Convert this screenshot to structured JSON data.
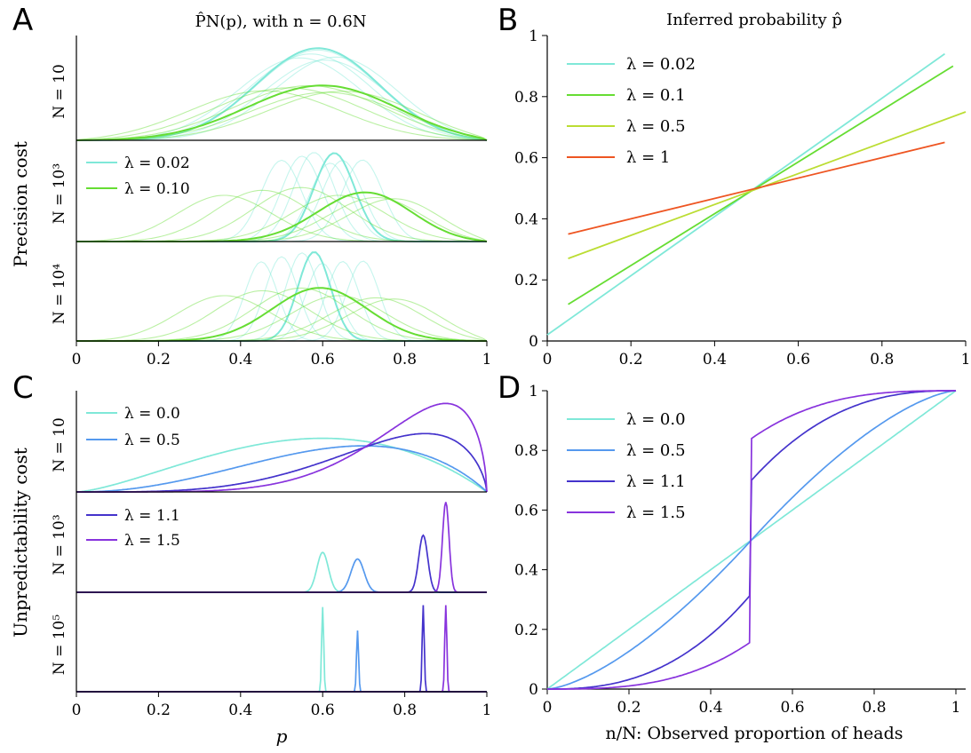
{
  "panel_letters": [
    "A",
    "B",
    "C",
    "D"
  ],
  "shared_x_ticks": [
    "0",
    "0.2",
    "0.4",
    "0.6",
    "0.8",
    "1"
  ],
  "colors": {
    "cyan": "#7fe8d8",
    "green": "#66dd33",
    "yellowgreen": "#bbdd33",
    "orange": "#ee5522",
    "blue": "#5599ee",
    "indigo": "#4433cc",
    "violet": "#8833dd"
  },
  "panel_a": {
    "title": "P̂N(p), with n = 0.6N",
    "row_group_label": "Precision cost",
    "row_labels": [
      "N = 10",
      "N = 10³",
      "N = 10⁴"
    ],
    "legend": [
      "λ = 0.02",
      "λ = 0.10"
    ]
  },
  "panel_b": {
    "title": "Inferred probability p̂",
    "y_ticks": [
      "0",
      "0.2",
      "0.4",
      "0.6",
      "0.8",
      "1"
    ],
    "legend": [
      "λ = 0.02",
      "λ = 0.1",
      "λ = 0.5",
      "λ = 1"
    ]
  },
  "panel_c": {
    "row_group_label": "Unpredictability cost",
    "row_labels": [
      "N = 10",
      "N = 10³",
      "N = 10⁵"
    ],
    "legend_top": [
      "λ = 0.0",
      "λ = 0.5"
    ],
    "legend_mid": [
      "λ = 1.1",
      "λ = 1.5"
    ],
    "x_label": "p"
  },
  "panel_d": {
    "y_ticks": [
      "0",
      "0.2",
      "0.4",
      "0.6",
      "0.8",
      "1"
    ],
    "legend": [
      "λ = 0.0",
      "λ = 0.5",
      "λ = 1.1",
      "λ = 1.5"
    ],
    "x_label": "n/N: Observed proportion of heads"
  },
  "chart_data": [
    {
      "panel": "A",
      "type": "line",
      "title": "P̂N(p), with n = 0.6N",
      "xlabel": "",
      "ylabel": "Precision cost",
      "xlim": [
        0,
        1
      ],
      "rows": [
        {
          "label": "N = 10",
          "series": [
            {
              "name": "λ = 0.02",
              "peaks": [
                0.55,
                0.58,
                0.6,
                0.62,
                0.65
              ],
              "width": 0.16,
              "main_peak": 0.6
            },
            {
              "name": "λ = 0.10",
              "peaks": [
                0.45,
                0.52,
                0.58,
                0.63,
                0.68
              ],
              "width": 0.2,
              "main_peak": 0.62
            }
          ]
        },
        {
          "label": "N = 10³",
          "series": [
            {
              "name": "λ = 0.02",
              "peaks": [
                0.5,
                0.55,
                0.58,
                0.62,
                0.65,
                0.7
              ],
              "width": 0.05,
              "main_peak": 0.63
            },
            {
              "name": "λ = 0.10",
              "peaks": [
                0.35,
                0.45,
                0.55,
                0.65,
                0.75,
                0.8
              ],
              "width": 0.12,
              "main_peak": 0.72
            }
          ]
        },
        {
          "label": "N = 10⁴",
          "series": [
            {
              "name": "λ = 0.02",
              "peaks": [
                0.45,
                0.5,
                0.55,
                0.6,
                0.65,
                0.7
              ],
              "width": 0.04,
              "main_peak": 0.58
            },
            {
              "name": "λ = 0.10",
              "peaks": [
                0.35,
                0.45,
                0.55,
                0.65,
                0.75,
                0.8
              ],
              "width": 0.12,
              "main_peak": 0.6
            }
          ]
        }
      ]
    },
    {
      "panel": "B",
      "type": "line",
      "title": "Inferred probability p̂",
      "xlim": [
        0,
        1
      ],
      "ylim": [
        0,
        1
      ],
      "series": [
        {
          "name": "λ = 0.02",
          "x": [
            0.0,
            0.95
          ],
          "y": [
            0.02,
            0.94
          ]
        },
        {
          "name": "λ = 0.1",
          "x": [
            0.05,
            0.97
          ],
          "y": [
            0.12,
            0.9
          ]
        },
        {
          "name": "λ = 0.5",
          "x": [
            0.05,
            1.0
          ],
          "y": [
            0.27,
            0.75
          ]
        },
        {
          "name": "λ = 1",
          "x": [
            0.05,
            0.95
          ],
          "y": [
            0.35,
            0.65
          ]
        }
      ]
    },
    {
      "panel": "C",
      "type": "line",
      "ylabel": "Unpredictability cost",
      "xlabel": "p",
      "xlim": [
        0,
        1
      ],
      "rows": [
        {
          "label": "N = 10",
          "series": [
            {
              "name": "λ = 0.0",
              "mode": 0.6,
              "height": 0.57
            },
            {
              "name": "λ = 0.5",
              "mode": 0.7,
              "height": 0.49
            },
            {
              "name": "λ = 1.1",
              "mode": 0.85,
              "height": 0.62
            },
            {
              "name": "λ = 1.5",
              "mode": 0.9,
              "height": 0.94
            }
          ]
        },
        {
          "label": "N = 10³",
          "series": [
            {
              "name": "λ = 0.0",
              "mode": 0.6,
              "height": 0.42
            },
            {
              "name": "λ = 0.5",
              "mode": 0.685,
              "height": 0.35
            },
            {
              "name": "λ = 1.1",
              "mode": 0.845,
              "height": 0.6
            },
            {
              "name": "λ = 1.5",
              "mode": 0.9,
              "height": 0.95
            }
          ]
        },
        {
          "label": "N = 10⁵",
          "series": [
            {
              "name": "λ = 0.0",
              "mode": 0.6,
              "height": 0.9
            },
            {
              "name": "λ = 0.5",
              "mode": 0.685,
              "height": 0.65
            },
            {
              "name": "λ = 1.1",
              "mode": 0.845,
              "height": 0.92
            },
            {
              "name": "λ = 1.5",
              "mode": 0.9,
              "height": 0.92
            }
          ]
        }
      ]
    },
    {
      "panel": "D",
      "type": "line",
      "xlabel": "n/N: Observed proportion of heads",
      "xlim": [
        0,
        1
      ],
      "ylim": [
        0,
        1
      ],
      "series": [
        {
          "name": "λ = 0.0",
          "kind": "identity"
        },
        {
          "name": "λ = 0.5",
          "kind": "sigmoid",
          "curvature": 1.5
        },
        {
          "name": "λ = 1.1",
          "kind": "sigmoid",
          "curvature": 2.8,
          "jump": [
            0.32,
            0.7
          ]
        },
        {
          "name": "λ = 1.5",
          "kind": "sigmoid",
          "curvature": 3.3,
          "jump": [
            0.16,
            0.84
          ]
        }
      ]
    }
  ]
}
